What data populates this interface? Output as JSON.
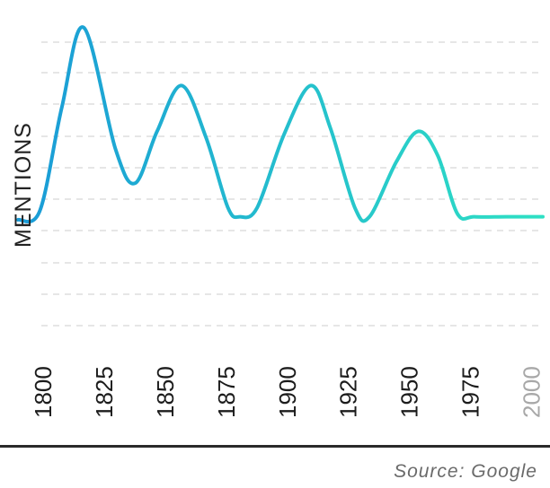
{
  "chart_data": {
    "type": "line",
    "title": "",
    "xlabel": "",
    "ylabel": "MENTIONS",
    "x_ticks": [
      "1800",
      "1825",
      "1850",
      "1875",
      "1900",
      "1925",
      "1950",
      "1975",
      "2000"
    ],
    "xlim": [
      1790,
      2005
    ],
    "ylim": [
      0,
      100
    ],
    "grid": true,
    "series": [
      {
        "x": [
          1790,
          1799,
          1808,
          1817,
          1830,
          1838,
          1847,
          1857,
          1867,
          1876,
          1881,
          1888,
          1899,
          1910,
          1918,
          1928,
          1934,
          1945,
          1954,
          1962,
          1970,
          1977,
          1990,
          2005
        ],
        "y": [
          35,
          38,
          72,
          98,
          58,
          47,
          64,
          79,
          62,
          39,
          36,
          39,
          63,
          79,
          65,
          39,
          36,
          54,
          64,
          56,
          37,
          36,
          36,
          36
        ],
        "color_start": "#1a9bd7",
        "color_end": "#2ee0c4"
      }
    ],
    "faded_tick_color": "#a8a8a8",
    "grid_color": "#dddddd"
  },
  "source": "Source: Google"
}
